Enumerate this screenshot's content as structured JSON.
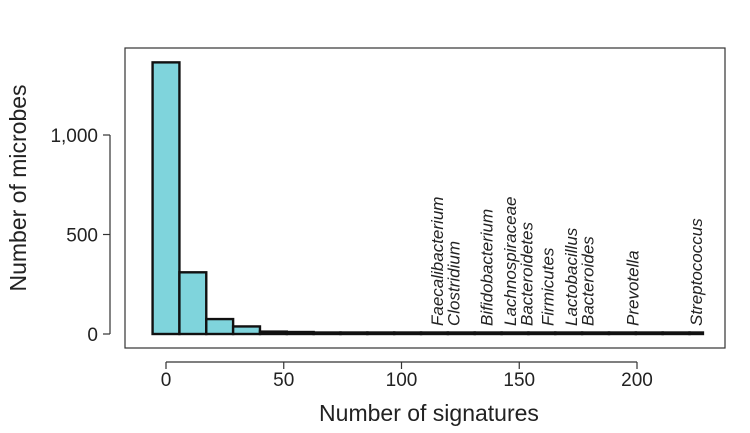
{
  "chart_data": {
    "type": "bar",
    "title": "",
    "xlabel": "Number of signatures",
    "ylabel": "Number of microbes",
    "xlim": [
      -12,
      231
    ],
    "ylim": [
      -30,
      1440
    ],
    "bar_color": "#7fd4dc",
    "bin_width": 11.4,
    "bins": [
      {
        "start": -5.7,
        "end": 5.7,
        "count": 1365
      },
      {
        "start": 5.7,
        "end": 17.1,
        "count": 310
      },
      {
        "start": 17.1,
        "end": 28.5,
        "count": 75
      },
      {
        "start": 28.5,
        "end": 39.9,
        "count": 38
      },
      {
        "start": 39.9,
        "end": 51.3,
        "count": 12
      },
      {
        "start": 51.3,
        "end": 62.7,
        "count": 10
      },
      {
        "start": 62.7,
        "end": 74.1,
        "count": 6
      },
      {
        "start": 74.1,
        "end": 85.5,
        "count": 3
      },
      {
        "start": 85.5,
        "end": 96.9,
        "count": 3
      },
      {
        "start": 96.9,
        "end": 108.3,
        "count": 2
      },
      {
        "start": 108.3,
        "end": 119.7,
        "count": 2
      },
      {
        "start": 119.7,
        "end": 131.1,
        "count": 2
      },
      {
        "start": 131.1,
        "end": 142.5,
        "count": 1
      },
      {
        "start": 142.5,
        "end": 153.9,
        "count": 2
      },
      {
        "start": 153.9,
        "end": 165.3,
        "count": 1
      },
      {
        "start": 165.3,
        "end": 176.7,
        "count": 2
      },
      {
        "start": 176.7,
        "end": 188.1,
        "count": 1
      },
      {
        "start": 188.1,
        "end": 199.5,
        "count": 1
      },
      {
        "start": 199.5,
        "end": 210.9,
        "count": 1
      },
      {
        "start": 210.9,
        "end": 222.3,
        "count": 1
      },
      {
        "start": 222.3,
        "end": 228.0,
        "count": 1
      }
    ],
    "x_ticks": [
      0,
      50,
      100,
      150,
      200
    ],
    "x_tick_labels": [
      "0",
      "50",
      "100",
      "150",
      "200"
    ],
    "y_ticks": [
      0,
      500,
      1000
    ],
    "y_tick_labels": [
      "0",
      "500",
      "1,000"
    ],
    "annotations": [
      {
        "text": "Faecalibacterium",
        "x": 115
      },
      {
        "text": "Clostridium",
        "x": 122
      },
      {
        "text": "Bifidobacterium",
        "x": 136
      },
      {
        "text": "Lachnospiraceae",
        "x": 146
      },
      {
        "text": "Bacteroidetes",
        "x": 153
      },
      {
        "text": "Firmicutes",
        "x": 162
      },
      {
        "text": "Lactobacillus",
        "x": 172
      },
      {
        "text": "Bacteroides",
        "x": 179
      },
      {
        "text": "Prevotella",
        "x": 198
      },
      {
        "text": "Streptococcus",
        "x": 225
      }
    ]
  }
}
